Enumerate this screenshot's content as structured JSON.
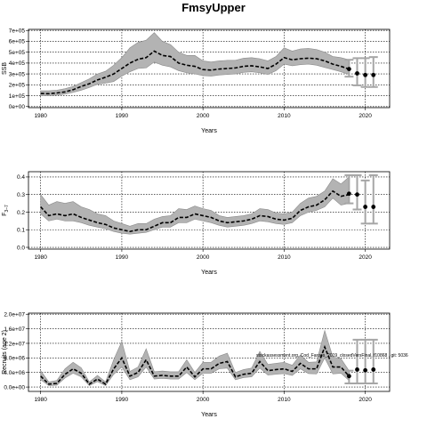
{
  "title": "FmsyUpper",
  "annotation": "stockassessment.org, Cod_Faroes_2019_closedVersFinal, f10868 , git: 5036",
  "chart_data": [
    {
      "type": "line",
      "name": "ssb",
      "xlabel": "Years",
      "ylabel": "SSB",
      "xlim": [
        1978.5,
        2023.0
      ],
      "ylim": [
        -10000,
        710000
      ],
      "xticks": [
        1980,
        1990,
        2000,
        2010,
        2020
      ],
      "yticks": [
        0,
        100000,
        200000,
        300000,
        400000,
        500000,
        600000,
        700000
      ],
      "yticklabels": [
        "0e+00",
        "1e+05",
        "2e+05",
        "3e+05",
        "4e+05",
        "5e+05",
        "6e+05",
        "7e+05"
      ],
      "grid": true,
      "years": [
        1980,
        1981,
        1982,
        1983,
        1984,
        1985,
        1986,
        1987,
        1988,
        1989,
        1990,
        1991,
        1992,
        1993,
        1994,
        1995,
        1996,
        1997,
        1998,
        1999,
        2000,
        2001,
        2002,
        2003,
        2004,
        2005,
        2006,
        2007,
        2008,
        2009,
        2010,
        2011,
        2012,
        2013,
        2014,
        2015,
        2016,
        2017,
        2018
      ],
      "estimate": [
        120000,
        118000,
        125000,
        135000,
        155000,
        185000,
        210000,
        245000,
        270000,
        300000,
        350000,
        400000,
        435000,
        450000,
        510000,
        470000,
        460000,
        400000,
        380000,
        370000,
        340000,
        335000,
        345000,
        350000,
        355000,
        370000,
        375000,
        365000,
        350000,
        390000,
        450000,
        430000,
        440000,
        445000,
        440000,
        420000,
        390000,
        370000,
        345000
      ],
      "lower": [
        100000,
        100000,
        105000,
        115000,
        130000,
        150000,
        175000,
        205000,
        215000,
        230000,
        280000,
        320000,
        350000,
        355000,
        410000,
        380000,
        365000,
        330000,
        310000,
        300000,
        285000,
        280000,
        290000,
        295000,
        300000,
        315000,
        320000,
        310000,
        295000,
        330000,
        390000,
        375000,
        385000,
        390000,
        380000,
        360000,
        340000,
        320000,
        295000
      ],
      "upper": [
        145000,
        145000,
        150000,
        165000,
        185000,
        220000,
        255000,
        300000,
        325000,
        380000,
        450000,
        540000,
        590000,
        610000,
        680000,
        600000,
        570000,
        500000,
        470000,
        470000,
        420000,
        410000,
        420000,
        425000,
        425000,
        445000,
        450000,
        440000,
        420000,
        460000,
        540000,
        510000,
        530000,
        535000,
        525000,
        500000,
        460000,
        450000,
        430000
      ],
      "forecast": [
        {
          "year": 2018,
          "median": 345000,
          "low": 275000,
          "high": 430000
        },
        {
          "year": 2019,
          "median": 305000,
          "low": 195000,
          "high": 445000
        },
        {
          "year": 2020,
          "median": 290000,
          "low": 180000,
          "high": 445000
        },
        {
          "year": 2021,
          "median": 290000,
          "low": 180000,
          "high": 455000
        }
      ]
    },
    {
      "type": "line",
      "name": "fbar",
      "xlabel": "Years",
      "ylabel": "F3-7",
      "ylabel_main": "F",
      "ylabel_sub": "3–7",
      "xlim": [
        1978.5,
        2023.0
      ],
      "ylim": [
        -0.01,
        0.43
      ],
      "xticks": [
        1980,
        1990,
        2000,
        2010,
        2020
      ],
      "yticks": [
        0.0,
        0.1,
        0.2,
        0.3,
        0.4
      ],
      "yticklabels": [
        "0.0",
        "0.1",
        "0.2",
        "0.3",
        "0.4"
      ],
      "grid": true,
      "years": [
        1980,
        1981,
        1982,
        1983,
        1984,
        1985,
        1986,
        1987,
        1988,
        1989,
        1990,
        1991,
        1992,
        1993,
        1994,
        1995,
        1996,
        1997,
        1998,
        1999,
        2000,
        2001,
        2002,
        2003,
        2004,
        2005,
        2006,
        2007,
        2008,
        2009,
        2010,
        2011,
        2012,
        2013,
        2014,
        2015,
        2016,
        2017,
        2018
      ],
      "estimate": [
        0.23,
        0.18,
        0.19,
        0.18,
        0.19,
        0.17,
        0.155,
        0.14,
        0.13,
        0.11,
        0.1,
        0.09,
        0.1,
        0.1,
        0.12,
        0.14,
        0.14,
        0.17,
        0.17,
        0.19,
        0.18,
        0.17,
        0.15,
        0.14,
        0.145,
        0.15,
        0.16,
        0.18,
        0.175,
        0.16,
        0.155,
        0.165,
        0.21,
        0.23,
        0.24,
        0.27,
        0.32,
        0.29,
        0.3
      ],
      "lower": [
        0.19,
        0.15,
        0.16,
        0.15,
        0.15,
        0.14,
        0.125,
        0.115,
        0.105,
        0.09,
        0.08,
        0.075,
        0.08,
        0.085,
        0.1,
        0.115,
        0.115,
        0.14,
        0.14,
        0.16,
        0.15,
        0.14,
        0.125,
        0.115,
        0.12,
        0.125,
        0.135,
        0.15,
        0.145,
        0.135,
        0.13,
        0.14,
        0.18,
        0.2,
        0.21,
        0.23,
        0.28,
        0.24,
        0.25
      ],
      "upper": [
        0.3,
        0.24,
        0.26,
        0.25,
        0.26,
        0.23,
        0.215,
        0.19,
        0.18,
        0.15,
        0.135,
        0.12,
        0.135,
        0.135,
        0.16,
        0.175,
        0.18,
        0.22,
        0.215,
        0.235,
        0.22,
        0.21,
        0.18,
        0.17,
        0.175,
        0.18,
        0.19,
        0.22,
        0.215,
        0.195,
        0.19,
        0.2,
        0.25,
        0.28,
        0.29,
        0.32,
        0.39,
        0.36,
        0.4
      ],
      "forecast": [
        {
          "year": 2018,
          "median": 0.305,
          "low": 0.25,
          "high": 0.41
        },
        {
          "year": 2019,
          "median": 0.3,
          "low": 0.215,
          "high": 0.41
        },
        {
          "year": 2020,
          "median": 0.23,
          "low": 0.135,
          "high": 0.38
        },
        {
          "year": 2021,
          "median": 0.23,
          "low": 0.135,
          "high": 0.41
        }
      ]
    },
    {
      "type": "line",
      "name": "recruitment",
      "xlabel": "Years",
      "ylabel": "Recruits (age 2)",
      "xlim": [
        1978.5,
        2023.0
      ],
      "ylim": [
        -1200000,
        20300000
      ],
      "xticks": [
        1980,
        1990,
        2000,
        2010,
        2020
      ],
      "yticks": [
        0,
        4000000,
        8000000,
        12000000,
        16000000,
        20000000
      ],
      "yticklabels": [
        "0.0e+00",
        "4.0e+06",
        "8.0e+06",
        "1.2e+07",
        "1.6e+07",
        "2.0e+07"
      ],
      "grid": true,
      "years": [
        1980,
        1981,
        1982,
        1983,
        1984,
        1985,
        1986,
        1987,
        1988,
        1989,
        1990,
        1991,
        1992,
        1993,
        1994,
        1995,
        1996,
        1997,
        1998,
        1999,
        2000,
        2001,
        2002,
        2003,
        2004,
        2005,
        2006,
        2007,
        2008,
        2009,
        2010,
        2011,
        2012,
        2013,
        2014,
        2015,
        2016,
        2017,
        2018
      ],
      "estimate": [
        3000000,
        800000,
        1000000,
        3500000,
        5000000,
        3800000,
        800000,
        2200000,
        800000,
        5000000,
        8000000,
        3000000,
        4000000,
        7500000,
        3000000,
        3200000,
        3000000,
        3000000,
        5500000,
        2800000,
        5000000,
        5000000,
        6500000,
        7000000,
        2800000,
        3500000,
        3800000,
        7000000,
        4500000,
        4800000,
        5000000,
        4300000,
        6500000,
        5000000,
        5000000,
        11000000,
        5500000,
        5500000,
        3000000
      ],
      "lower": [
        2000000,
        400000,
        500000,
        2500000,
        3800000,
        2800000,
        400000,
        1500000,
        400000,
        3500000,
        5500000,
        2000000,
        2800000,
        5500000,
        2200000,
        2400000,
        2200000,
        2200000,
        4000000,
        2000000,
        3800000,
        3800000,
        5000000,
        5200000,
        2000000,
        2600000,
        2800000,
        5200000,
        3300000,
        3500000,
        3700000,
        3200000,
        5000000,
        3700000,
        3600000,
        8000000,
        3600000,
        3800000,
        1800000
      ],
      "upper": [
        4500000,
        1400000,
        1800000,
        5000000,
        6800000,
        5300000,
        1400000,
        3200000,
        1400000,
        7500000,
        12500000,
        4300000,
        5500000,
        10500000,
        4200000,
        4400000,
        4200000,
        4200000,
        7500000,
        4000000,
        6800000,
        6800000,
        8500000,
        9300000,
        4000000,
        4800000,
        5200000,
        9800000,
        6200000,
        6500000,
        6800000,
        6000000,
        8800000,
        6800000,
        6900000,
        15500000,
        8300000,
        7800000,
        4500000
      ],
      "forecast": [
        {
          "year": 2018,
          "median": 3000000,
          "low": 1000000,
          "high": 4500000
        },
        {
          "year": 2019,
          "median": 4800000,
          "low": 1000000,
          "high": 13000000
        },
        {
          "year": 2020,
          "median": 4600000,
          "low": 1000000,
          "high": 13000000
        },
        {
          "year": 2021,
          "median": 4800000,
          "low": 1000000,
          "high": 13000000
        }
      ]
    }
  ]
}
